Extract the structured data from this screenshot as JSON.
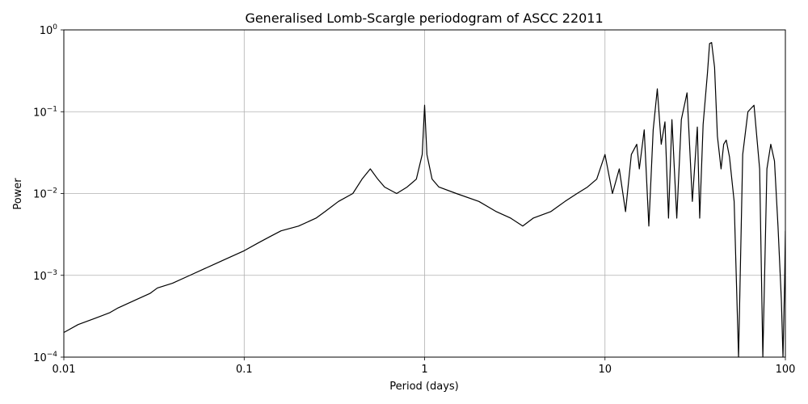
{
  "chart_data": {
    "type": "line",
    "title": "Generalised Lomb-Scargle periodogram of ASCC 22011",
    "xlabel": "Period (days)",
    "ylabel": "Power",
    "xscale": "log",
    "yscale": "log",
    "xlim": [
      0.01,
      100
    ],
    "ylim": [
      0.0001,
      1
    ],
    "grid": "major",
    "line_color": "#000000",
    "x_ticks": [
      {
        "value": 0.01,
        "label": "0.01"
      },
      {
        "value": 0.1,
        "label": "0.1"
      },
      {
        "value": 1,
        "label": "1"
      },
      {
        "value": 10,
        "label": "10"
      },
      {
        "value": 100,
        "label": "100"
      }
    ],
    "y_ticks": [
      {
        "value": 0.0001,
        "base": "10",
        "exp": "−4"
      },
      {
        "value": 0.001,
        "base": "10",
        "exp": "−3"
      },
      {
        "value": 0.01,
        "base": "10",
        "exp": "−2"
      },
      {
        "value": 0.1,
        "base": "10",
        "exp": "−1"
      },
      {
        "value": 1,
        "base": "10",
        "exp": "0"
      }
    ],
    "series": [
      {
        "x": [
          0.01,
          0.012,
          0.015,
          0.018,
          0.02,
          0.025,
          0.03,
          0.033,
          0.04,
          0.05,
          0.06,
          0.07,
          0.08,
          0.1,
          0.12,
          0.14,
          0.16,
          0.2,
          0.25,
          0.28,
          0.333,
          0.4,
          0.45,
          0.5,
          0.55,
          0.6,
          0.7,
          0.8,
          0.9,
          0.97,
          1.0,
          1.03,
          1.1,
          1.2,
          1.5,
          2.0,
          2.5,
          3.0,
          3.5,
          4.0,
          5.0,
          6.0,
          7.0,
          8.0,
          9.0,
          10.0,
          11.0,
          12.0,
          13.0,
          14.0,
          15.0,
          15.5,
          16.5,
          17.5,
          18.5,
          19.5,
          20.5,
          21.5,
          22.5,
          23.5,
          25.0,
          26.5,
          28.5,
          30.5,
          32.5,
          33.5,
          35.0,
          37.0,
          38.0,
          39.0,
          40.5,
          42.0,
          44.0,
          45.5,
          47.0,
          49.0,
          52.0,
          55.0,
          58.0,
          62.0,
          67.0,
          72.0,
          75.0,
          79.0,
          83.0,
          87.0,
          91.0,
          95.0,
          97.0,
          99.0,
          100.0
        ],
        "y": [
          0.0002,
          0.00025,
          0.0003,
          0.00035,
          0.0004,
          0.0005,
          0.0006,
          0.0007,
          0.0008,
          0.001,
          0.0012,
          0.0014,
          0.0016,
          0.002,
          0.0025,
          0.003,
          0.0035,
          0.004,
          0.005,
          0.006,
          0.008,
          0.01,
          0.015,
          0.02,
          0.015,
          0.012,
          0.01,
          0.012,
          0.015,
          0.03,
          0.12,
          0.03,
          0.015,
          0.012,
          0.01,
          0.008,
          0.006,
          0.005,
          0.004,
          0.005,
          0.006,
          0.008,
          0.01,
          0.012,
          0.015,
          0.03,
          0.01,
          0.02,
          0.006,
          0.03,
          0.04,
          0.02,
          0.06,
          0.004,
          0.06,
          0.19,
          0.04,
          0.075,
          0.005,
          0.08,
          0.005,
          0.08,
          0.17,
          0.008,
          0.065,
          0.005,
          0.07,
          0.3,
          0.68,
          0.7,
          0.35,
          0.05,
          0.02,
          0.04,
          0.045,
          0.028,
          0.008,
          0.0001,
          0.03,
          0.1,
          0.12,
          0.02,
          0.0001,
          0.02,
          0.04,
          0.025,
          0.004,
          0.0005,
          0.0001,
          0.0008,
          0.0035
        ]
      }
    ]
  }
}
